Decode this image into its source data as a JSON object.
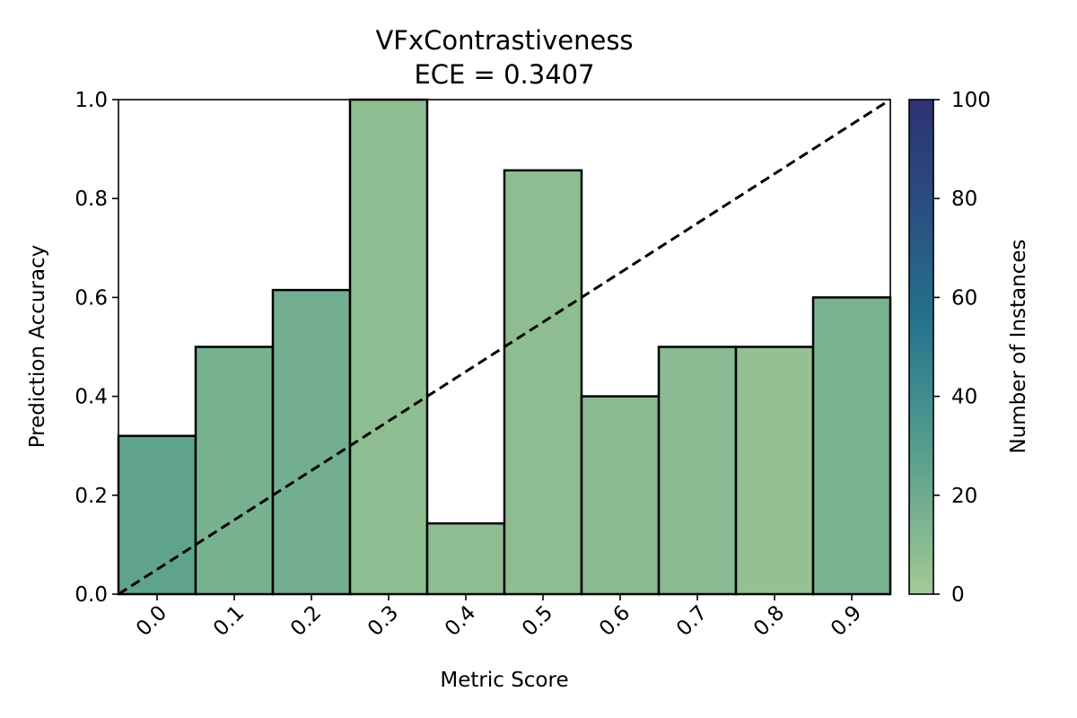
{
  "chart_data": {
    "type": "bar",
    "title": "VFxContrastiveness",
    "subtitle": "ECE = 0.3407",
    "xlabel": "Metric Score",
    "ylabel": "Prediction Accuracy",
    "categories": [
      "0.0",
      "0.1",
      "0.2",
      "0.3",
      "0.4",
      "0.5",
      "0.6",
      "0.7",
      "0.8",
      "0.9"
    ],
    "values": [
      0.32,
      0.5,
      0.615,
      1.0,
      0.143,
      0.857,
      0.4,
      0.5,
      0.5,
      0.6
    ],
    "counts": [
      25,
      16,
      18,
      8,
      8,
      8,
      9,
      10,
      6,
      15
    ],
    "ylim": [
      0,
      1
    ],
    "yticks": [
      "0.0",
      "0.2",
      "0.4",
      "0.6",
      "0.8",
      "1.0"
    ],
    "reference_line": "y = x (dashed)",
    "colorbar": {
      "label": "Number of Instances",
      "range": [
        0,
        100
      ],
      "ticks": [
        "0",
        "20",
        "40",
        "60",
        "80",
        "100"
      ],
      "colormap": "crest",
      "color_stops": [
        "#a5c994",
        "#5fa38e",
        "#24738d",
        "#2b4b7f",
        "#2d3373"
      ]
    },
    "grid": false,
    "legend": "none"
  }
}
